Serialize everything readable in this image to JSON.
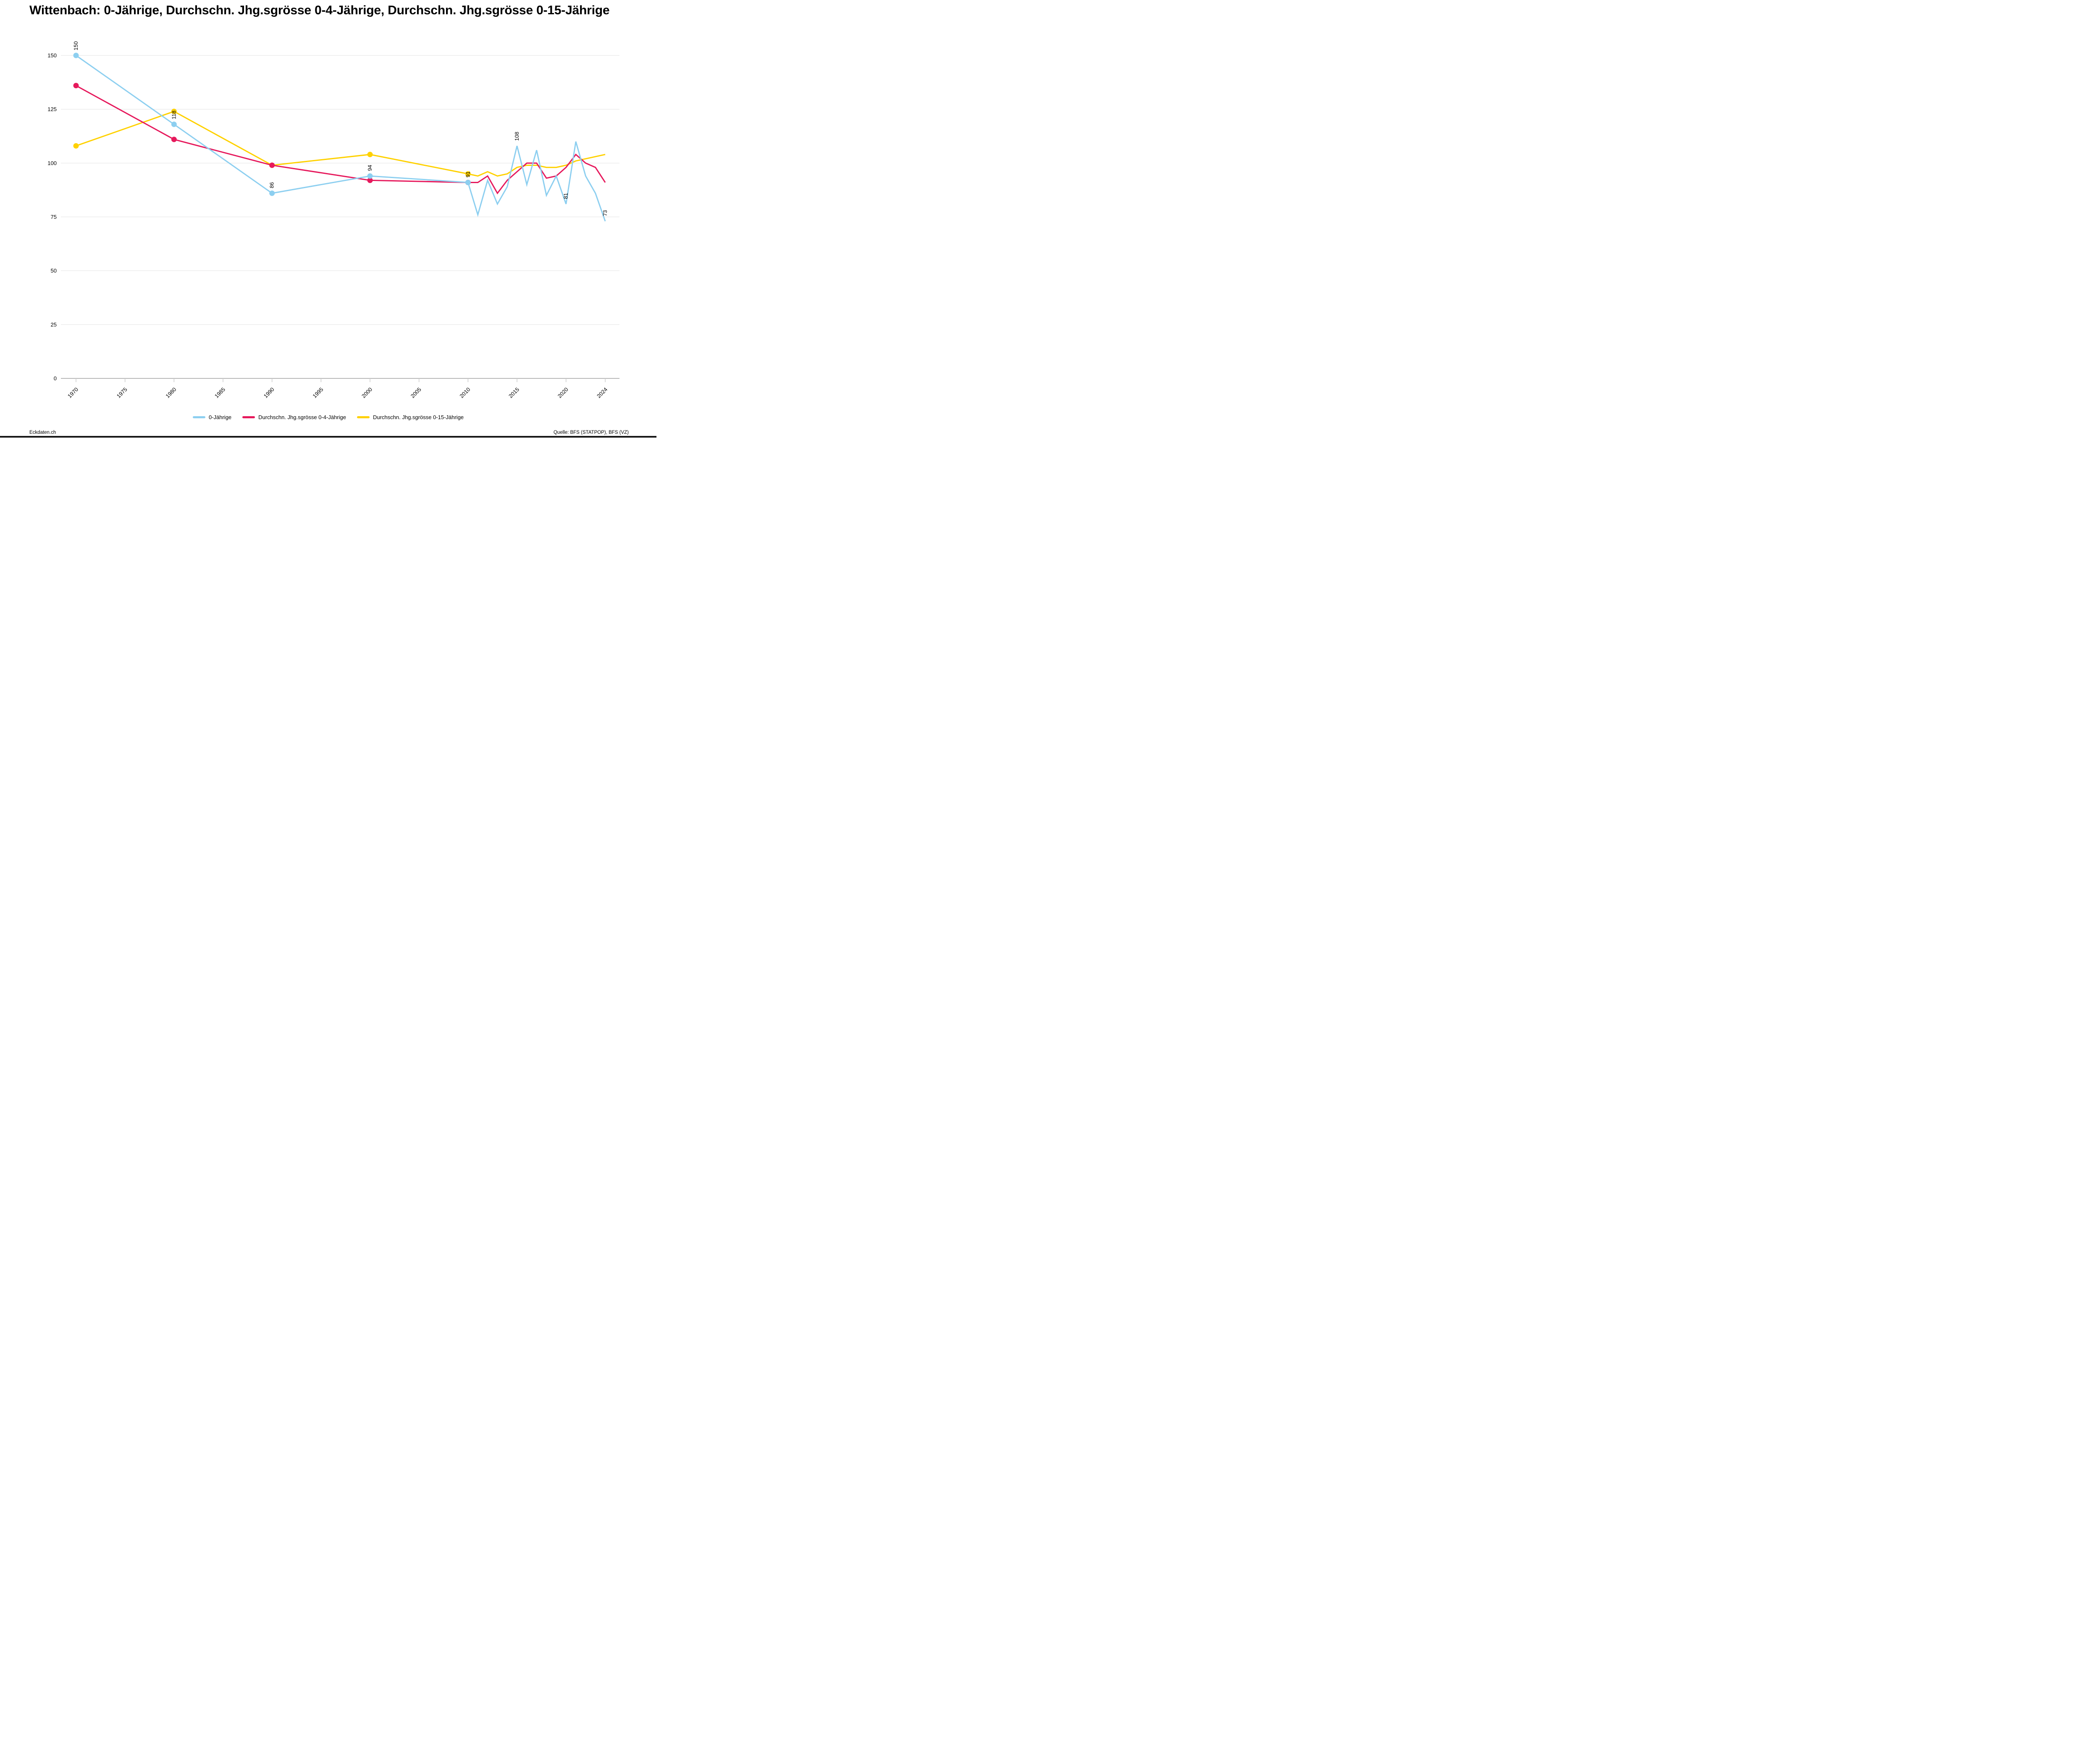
{
  "chart_data": {
    "type": "line",
    "title": "Wittenbach: 0-Jährige, Durchschn. Jhg.sgrösse 0-4-Jährige, Durchschn. Jhg.sgrösse 0-15-Jährige",
    "x": [
      1970,
      1980,
      1990,
      2000,
      2010,
      2011,
      2012,
      2013,
      2014,
      2015,
      2016,
      2017,
      2018,
      2019,
      2020,
      2021,
      2022,
      2023,
      2024
    ],
    "x_ticks": [
      1970,
      1975,
      1980,
      1985,
      1990,
      1995,
      2000,
      2005,
      2010,
      2015,
      2020,
      2024
    ],
    "xlim": [
      1970,
      2024
    ],
    "ylim": [
      0,
      150
    ],
    "y_ticks": [
      0,
      25,
      50,
      75,
      100,
      125,
      150
    ],
    "grid": true,
    "legend_position": "bottom",
    "marker_years": [
      1970,
      1980,
      1990,
      2000,
      2010
    ],
    "series": [
      {
        "name": "0-Jährige",
        "color": "#8DCFF0",
        "values": [
          150,
          118,
          86,
          94,
          91,
          76,
          92,
          81,
          89,
          108,
          90,
          106,
          85,
          94,
          81,
          110,
          94,
          86,
          73
        ]
      },
      {
        "name": "Durchschn. Jhg.sgrösse 0-4-Jährige",
        "color": "#E6195C",
        "values": [
          136,
          111,
          99,
          92,
          91,
          91,
          94,
          86,
          92,
          96,
          100,
          100,
          93,
          94,
          98,
          104,
          100,
          98,
          91
        ]
      },
      {
        "name": "Durchschn. Jhg.sgrösse 0-15-Jährige",
        "color": "#FFD100",
        "values": [
          108,
          124,
          99,
          104,
          95,
          94,
          96,
          94,
          95,
          98,
          99,
          99,
          98,
          98,
          99,
          101,
          102,
          103,
          104
        ]
      }
    ],
    "point_labels": [
      {
        "x": 1970,
        "text": "150"
      },
      {
        "x": 1980,
        "text": "118"
      },
      {
        "x": 1990,
        "text": "86"
      },
      {
        "x": 2000,
        "text": "94"
      },
      {
        "x": 2010,
        "text": "91"
      },
      {
        "x": 2015,
        "text": "108"
      },
      {
        "x": 2020,
        "text": "81"
      },
      {
        "x": 2024,
        "text": "73"
      }
    ]
  },
  "footer": {
    "left": "Eckdaten.ch",
    "right": "Quelle: BFS (STATPOP), BFS (VZ)"
  },
  "colors": {
    "background": "#ffffff",
    "grid": "#e2e2e2",
    "axis": "#b8b8b8",
    "tick": "#cccccc",
    "text": "#000000",
    "bottom_bar": "#161616"
  }
}
